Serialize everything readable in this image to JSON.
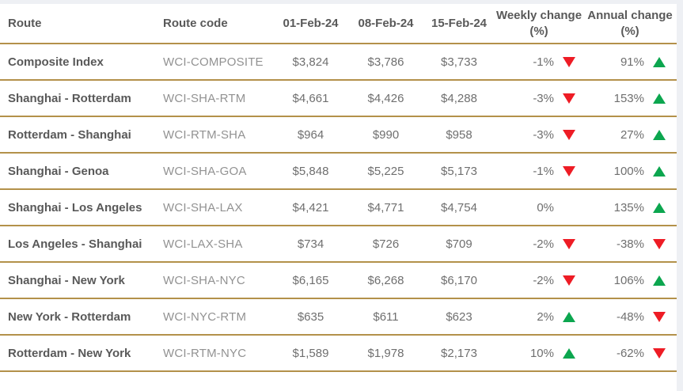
{
  "theme": {
    "gold": "#b3914a",
    "red": "#ee1c25",
    "green": "#0ca64f",
    "page_bg": "#eef0f4"
  },
  "chart_data": {
    "type": "table",
    "columns": [
      "Route",
      "Route code",
      "01-Feb-24",
      "08-Feb-24",
      "15-Feb-24",
      "Weekly change (%)",
      "Annual change (%)"
    ],
    "rows": [
      {
        "route": "Composite Index",
        "code": "WCI-COMPOSITE",
        "prices": [
          "$3,824",
          "$3,786",
          "$3,733"
        ],
        "weekly_change": "-1%",
        "weekly_dir": "down",
        "annual_change": "91%",
        "annual_dir": "up"
      },
      {
        "route": "Shanghai - Rotterdam",
        "code": "WCI-SHA-RTM",
        "prices": [
          "$4,661",
          "$4,426",
          "$4,288"
        ],
        "weekly_change": "-3%",
        "weekly_dir": "down",
        "annual_change": "153%",
        "annual_dir": "up"
      },
      {
        "route": "Rotterdam - Shanghai",
        "code": "WCI-RTM-SHA",
        "prices": [
          "$964",
          "$990",
          "$958"
        ],
        "weekly_change": "-3%",
        "weekly_dir": "down",
        "annual_change": "27%",
        "annual_dir": "up"
      },
      {
        "route": "Shanghai - Genoa",
        "code": "WCI-SHA-GOA",
        "prices": [
          "$5,848",
          "$5,225",
          "$5,173"
        ],
        "weekly_change": "-1%",
        "weekly_dir": "down",
        "annual_change": "100%",
        "annual_dir": "up"
      },
      {
        "route": "Shanghai - Los Angeles",
        "code": "WCI-SHA-LAX",
        "prices": [
          "$4,421",
          "$4,771",
          "$4,754"
        ],
        "weekly_change": "0%",
        "weekly_dir": "none",
        "annual_change": "135%",
        "annual_dir": "up"
      },
      {
        "route": "Los Angeles - Shanghai",
        "code": "WCI-LAX-SHA",
        "prices": [
          "$734",
          "$726",
          "$709"
        ],
        "weekly_change": "-2%",
        "weekly_dir": "down",
        "annual_change": "-38%",
        "annual_dir": "down"
      },
      {
        "route": "Shanghai - New York",
        "code": "WCI-SHA-NYC",
        "prices": [
          "$6,165",
          "$6,268",
          "$6,170"
        ],
        "weekly_change": "-2%",
        "weekly_dir": "down",
        "annual_change": "106%",
        "annual_dir": "up"
      },
      {
        "route": "New York - Rotterdam",
        "code": "WCI-NYC-RTM",
        "prices": [
          "$635",
          "$611",
          "$623"
        ],
        "weekly_change": "2%",
        "weekly_dir": "up",
        "annual_change": "-48%",
        "annual_dir": "down"
      },
      {
        "route": "Rotterdam - New York",
        "code": "WCI-RTM-NYC",
        "prices": [
          "$1,589",
          "$1,978",
          "$2,173"
        ],
        "weekly_change": "10%",
        "weekly_dir": "up",
        "annual_change": "-62%",
        "annual_dir": "down"
      }
    ]
  }
}
